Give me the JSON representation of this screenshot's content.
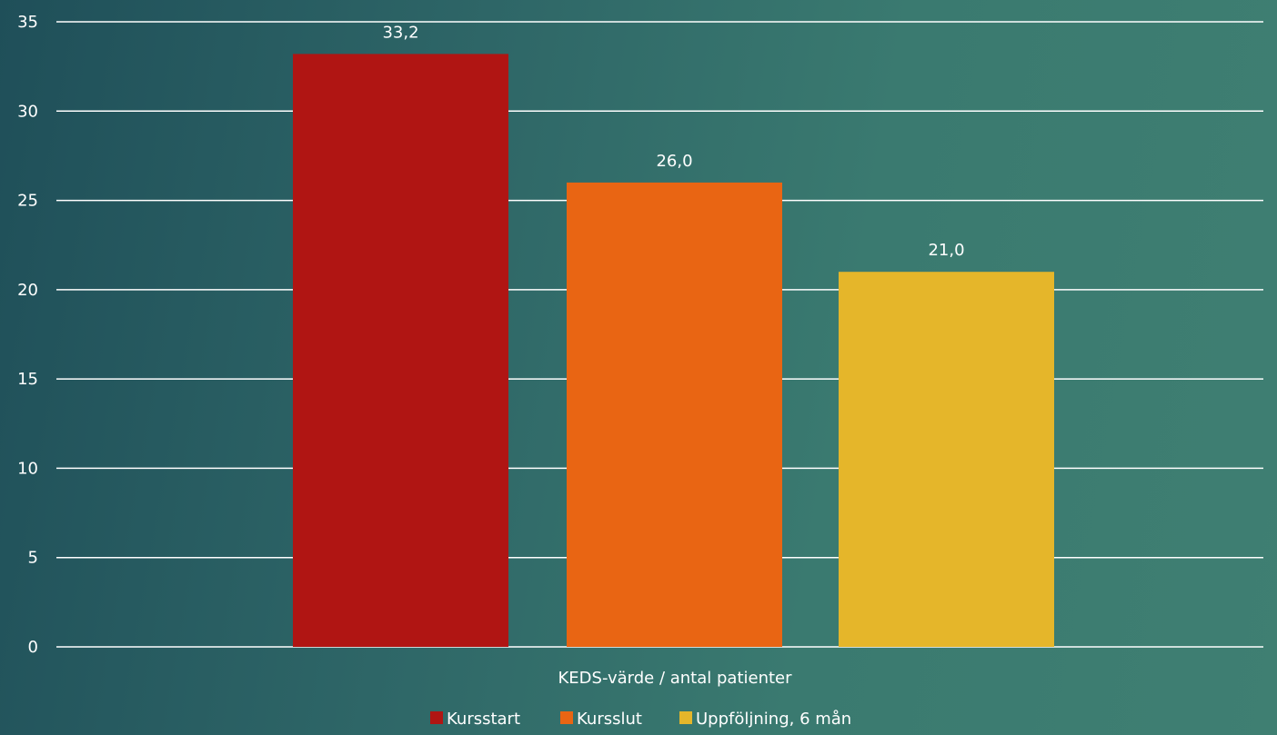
{
  "chart_data": {
    "type": "bar",
    "categories": [
      "KEDS-värde / antal patienter"
    ],
    "series": [
      {
        "name": "Kursstart",
        "values": [
          33.2
        ],
        "label": "33,2",
        "color": "#b01513"
      },
      {
        "name": "Kursslut",
        "values": [
          26.0
        ],
        "label": "26,0",
        "color": "#e96513"
      },
      {
        "name": "Uppföljning, 6 mån",
        "values": [
          21.0
        ],
        "label": "21,0",
        "color": "#e5b62a"
      }
    ],
    "yticks": [
      0,
      5,
      10,
      15,
      20,
      25,
      30,
      35
    ],
    "ylim": [
      0,
      35
    ],
    "grid": true,
    "gridline_color": "#ffffff",
    "legend_position": "bottom"
  }
}
